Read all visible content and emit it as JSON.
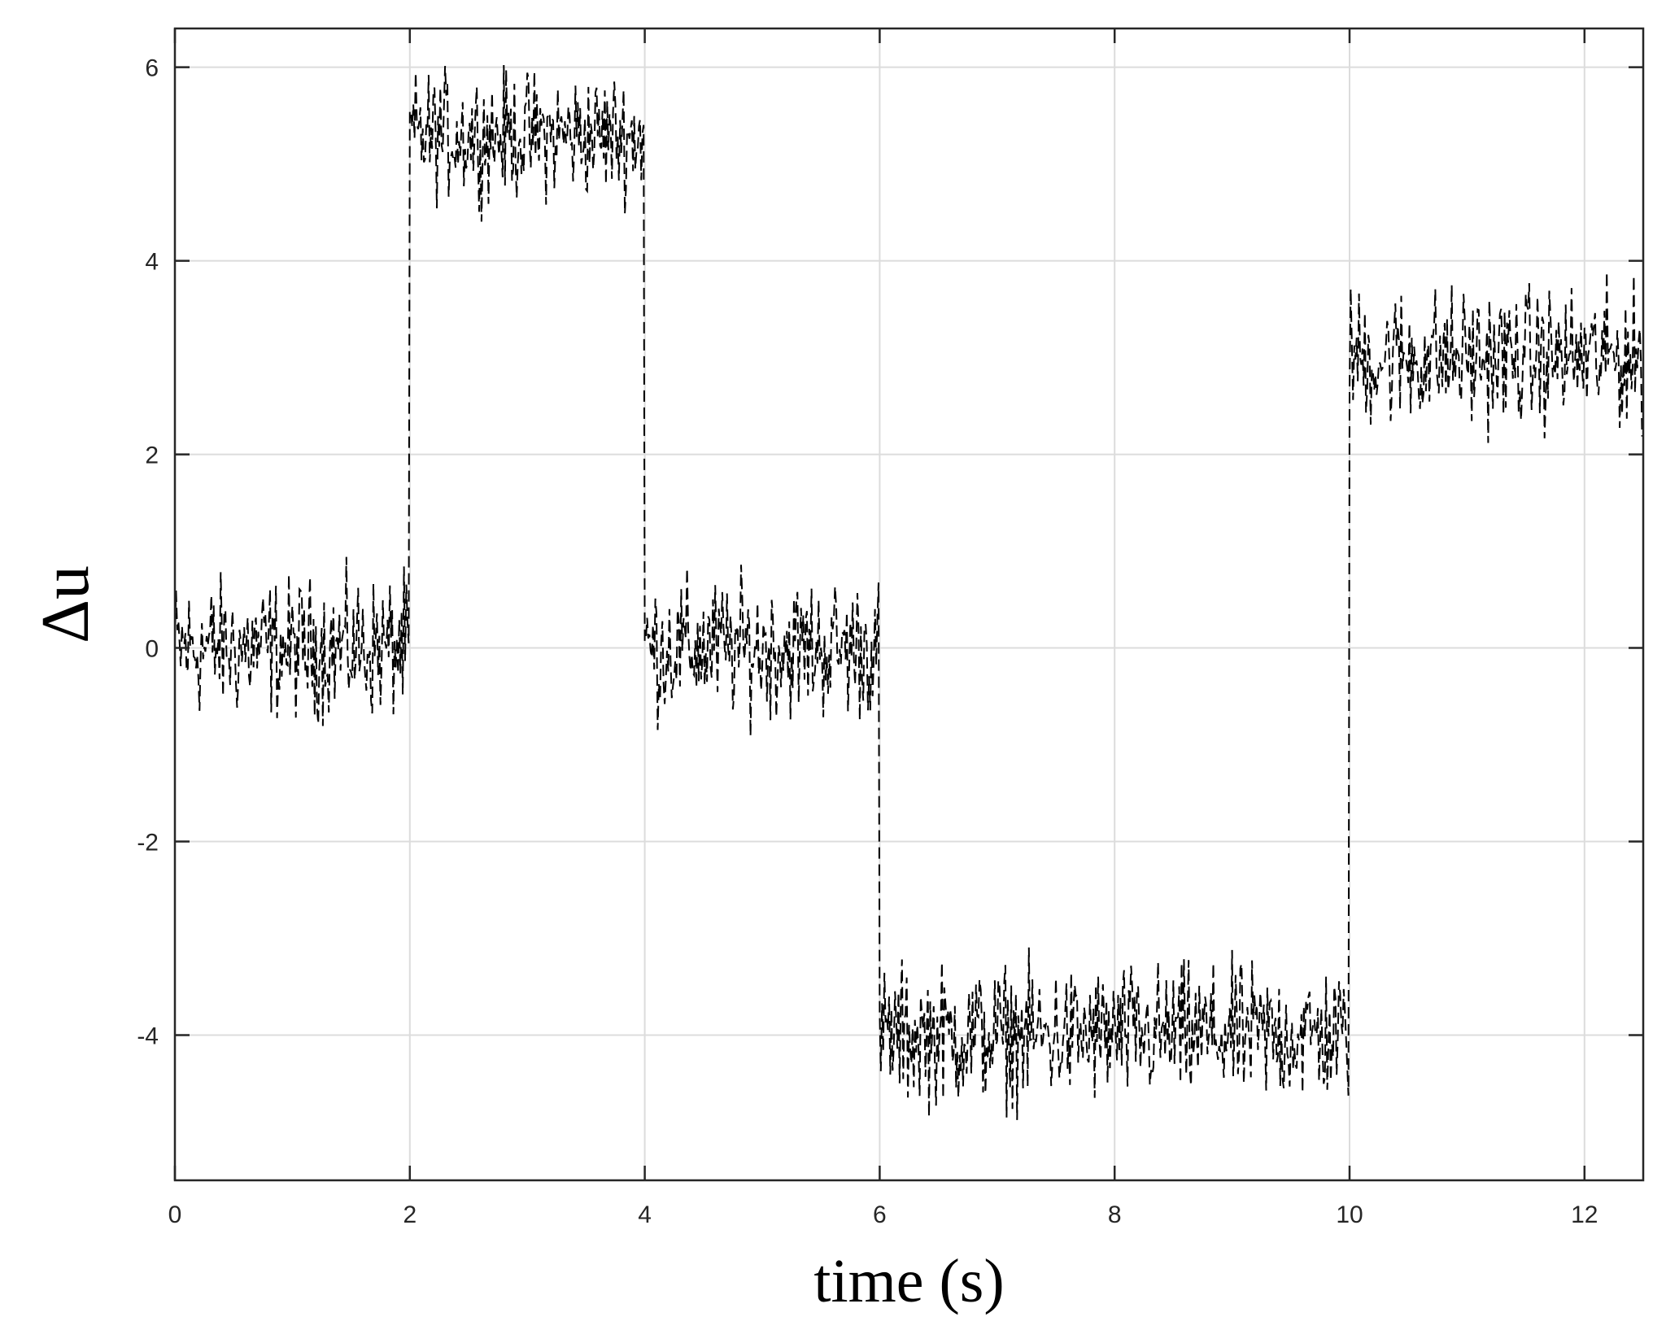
{
  "chart_data": {
    "type": "line",
    "title": "",
    "xlabel": "time (s)",
    "ylabel": "Δu",
    "xlim": [
      0,
      12.5
    ],
    "ylim": [
      -5.5,
      6.4
    ],
    "grid": true,
    "legend": "none",
    "colors": {
      "line": "#000000",
      "grid": "#dcdcdc",
      "axis": "#262626"
    },
    "line_style": "dashed",
    "x_ticks": [
      0,
      2,
      4,
      6,
      8,
      10,
      12
    ],
    "x_tick_labels": [
      "0",
      "2",
      "4",
      "6",
      "8",
      "10",
      "12"
    ],
    "y_ticks": [
      -4,
      -2,
      0,
      2,
      4,
      6
    ],
    "y_tick_labels": [
      "-4",
      "-2",
      "0",
      "2",
      "4",
      "6"
    ],
    "series": [
      {
        "segments": [
          {
            "t_start": 0,
            "t_end": 2,
            "mean": 0,
            "noise_min": -1.0,
            "noise_max": 1.0
          },
          {
            "t_start": 2,
            "t_end": 4,
            "mean": 5.3,
            "noise_min": 4.3,
            "noise_max": 6.2
          },
          {
            "t_start": 4,
            "t_end": 6,
            "mean": 0,
            "noise_min": -1.0,
            "noise_max": 1.0
          },
          {
            "t_start": 6,
            "t_end": 10,
            "mean": -4,
            "noise_min": -5.0,
            "noise_max": -3.0
          },
          {
            "t_start": 10,
            "t_end": 12.5,
            "mean": 3.0,
            "noise_min": 2.0,
            "noise_max": 4.0
          }
        ],
        "sample_interval": 0.01
      }
    ]
  }
}
